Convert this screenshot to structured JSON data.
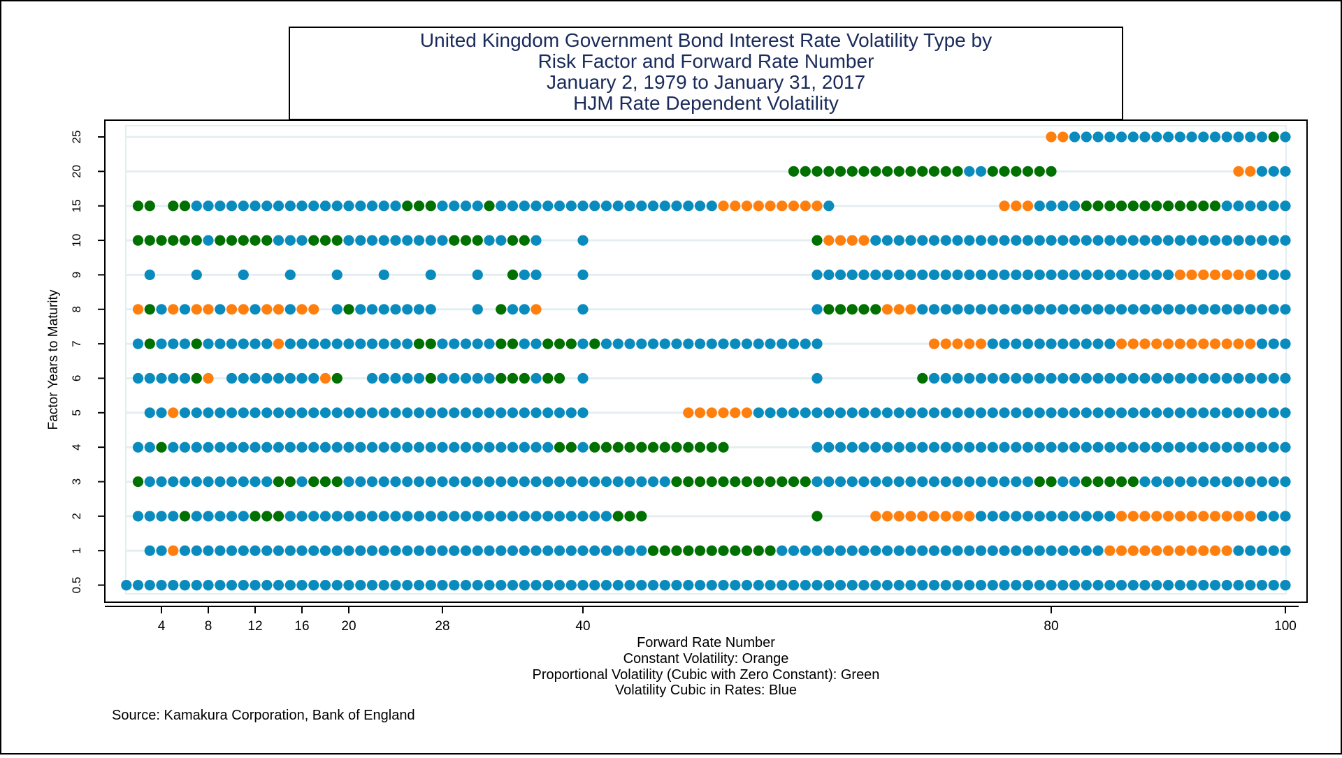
{
  "chart_data": {
    "type": "scatter",
    "title_lines": [
      "United Kingdom Government Bond Interest Rate Volatility Type by",
      "Risk Factor and Forward Rate Number",
      "January 2, 1979 to January 31, 2017",
      "HJM Rate Dependent Volatility"
    ],
    "xlabel": "Forward Rate Number",
    "ylabel": "Factor Years to Maturity",
    "x_ticks": [
      4,
      8,
      12,
      16,
      20,
      28,
      40,
      80,
      100
    ],
    "y_ticks": [
      "0.5",
      "1",
      "2",
      "3",
      "4",
      "5",
      "6",
      "7",
      "8",
      "9",
      "10",
      "15",
      "20",
      "25"
    ],
    "xlim": [
      0,
      100
    ],
    "legend_lines": [
      "Constant Volatility: Orange",
      "Proportional Volatility (Cubic with Zero Constant): Green",
      "Volatility Cubic in Rates: Blue"
    ],
    "source": "Source: Kamakura Corporation, Bank of England",
    "colors": {
      "orange": "#ff7f0e",
      "green": "#007000",
      "blue": "#0a8bbd",
      "grid": "#e4eef1",
      "title_text": "#1a2a5a"
    },
    "series_legend": {
      "o": "Constant Volatility",
      "g": "Proportional Volatility",
      "b": "Volatility Cubic in Rates"
    },
    "rows": [
      {
        "factor": "25",
        "segments": [
          [
            80,
            81,
            "o"
          ],
          [
            82,
            98,
            "b"
          ],
          [
            99,
            99,
            "g"
          ],
          [
            100,
            100,
            "b"
          ]
        ]
      },
      {
        "factor": "20",
        "segments": [
          [
            58,
            72,
            "g"
          ],
          [
            73,
            74,
            "b"
          ],
          [
            75,
            80,
            "g"
          ],
          [
            96,
            97,
            "o"
          ],
          [
            98,
            100,
            "b"
          ]
        ]
      },
      {
        "factor": "15",
        "segments": [
          [
            2,
            3,
            "g"
          ],
          [
            5,
            6,
            "g"
          ],
          [
            7,
            24,
            "b"
          ],
          [
            25,
            27,
            "g"
          ],
          [
            28,
            31,
            "b"
          ],
          [
            32,
            32,
            "g"
          ],
          [
            33,
            51,
            "b"
          ],
          [
            52,
            60,
            "o"
          ],
          [
            61,
            61,
            "b"
          ],
          [
            76,
            78,
            "o"
          ],
          [
            79,
            82,
            "b"
          ],
          [
            83,
            94,
            "g"
          ],
          [
            95,
            100,
            "b"
          ]
        ]
      },
      {
        "factor": "10",
        "segments": [
          [
            2,
            7,
            "g"
          ],
          [
            8,
            8,
            "b"
          ],
          [
            9,
            13,
            "g"
          ],
          [
            14,
            16,
            "b"
          ],
          [
            17,
            19,
            "g"
          ],
          [
            20,
            28,
            "b"
          ],
          [
            29,
            31,
            "g"
          ],
          [
            32,
            33,
            "b"
          ],
          [
            34,
            35,
            "g"
          ],
          [
            36,
            36,
            "b"
          ],
          [
            40,
            40,
            "b"
          ],
          [
            60,
            60,
            "g"
          ],
          [
            61,
            64,
            "o"
          ],
          [
            65,
            100,
            "b"
          ]
        ]
      },
      {
        "factor": "9",
        "segments": [
          [
            3,
            3,
            "b"
          ],
          [
            7,
            7,
            "b"
          ],
          [
            11,
            11,
            "b"
          ],
          [
            15,
            15,
            "b"
          ],
          [
            19,
            19,
            "b"
          ],
          [
            23,
            23,
            "b"
          ],
          [
            27,
            27,
            "b"
          ],
          [
            31,
            31,
            "b"
          ],
          [
            34,
            34,
            "g"
          ],
          [
            35,
            36,
            "b"
          ],
          [
            40,
            40,
            "b"
          ],
          [
            60,
            90,
            "b"
          ],
          [
            91,
            97,
            "o"
          ],
          [
            98,
            100,
            "b"
          ]
        ]
      },
      {
        "factor": "8",
        "segments": [
          [
            2,
            2,
            "o"
          ],
          [
            3,
            3,
            "g"
          ],
          [
            4,
            4,
            "b"
          ],
          [
            5,
            5,
            "o"
          ],
          [
            6,
            6,
            "b"
          ],
          [
            7,
            8,
            "o"
          ],
          [
            9,
            9,
            "b"
          ],
          [
            10,
            11,
            "o"
          ],
          [
            12,
            12,
            "b"
          ],
          [
            13,
            14,
            "o"
          ],
          [
            15,
            15,
            "b"
          ],
          [
            16,
            17,
            "o"
          ],
          [
            19,
            19,
            "b"
          ],
          [
            20,
            20,
            "g"
          ],
          [
            21,
            27,
            "b"
          ],
          [
            31,
            31,
            "b"
          ],
          [
            33,
            33,
            "g"
          ],
          [
            34,
            35,
            "b"
          ],
          [
            36,
            36,
            "o"
          ],
          [
            40,
            40,
            "b"
          ],
          [
            60,
            60,
            "b"
          ],
          [
            61,
            65,
            "g"
          ],
          [
            66,
            68,
            "o"
          ],
          [
            69,
            100,
            "b"
          ]
        ]
      },
      {
        "factor": "7",
        "segments": [
          [
            2,
            2,
            "b"
          ],
          [
            3,
            3,
            "g"
          ],
          [
            4,
            6,
            "b"
          ],
          [
            7,
            7,
            "g"
          ],
          [
            8,
            13,
            "b"
          ],
          [
            14,
            14,
            "o"
          ],
          [
            15,
            25,
            "b"
          ],
          [
            26,
            27,
            "g"
          ],
          [
            28,
            32,
            "b"
          ],
          [
            33,
            34,
            "g"
          ],
          [
            35,
            36,
            "b"
          ],
          [
            37,
            39,
            "g"
          ],
          [
            40,
            40,
            "b"
          ],
          [
            41,
            41,
            "g"
          ],
          [
            42,
            60,
            "b"
          ],
          [
            70,
            74,
            "o"
          ],
          [
            75,
            85,
            "b"
          ],
          [
            86,
            97,
            "o"
          ],
          [
            98,
            100,
            "b"
          ]
        ]
      },
      {
        "factor": "6",
        "segments": [
          [
            2,
            6,
            "b"
          ],
          [
            7,
            7,
            "g"
          ],
          [
            8,
            8,
            "o"
          ],
          [
            10,
            17,
            "b"
          ],
          [
            18,
            18,
            "o"
          ],
          [
            19,
            19,
            "g"
          ],
          [
            22,
            26,
            "b"
          ],
          [
            27,
            27,
            "g"
          ],
          [
            28,
            32,
            "b"
          ],
          [
            33,
            35,
            "g"
          ],
          [
            36,
            36,
            "b"
          ],
          [
            37,
            38,
            "g"
          ],
          [
            40,
            40,
            "b"
          ],
          [
            60,
            60,
            "b"
          ],
          [
            69,
            69,
            "g"
          ],
          [
            70,
            100,
            "b"
          ]
        ]
      },
      {
        "factor": "5",
        "segments": [
          [
            3,
            4,
            "b"
          ],
          [
            5,
            5,
            "o"
          ],
          [
            6,
            40,
            "b"
          ],
          [
            49,
            54,
            "o"
          ],
          [
            55,
            100,
            "b"
          ]
        ]
      },
      {
        "factor": "4",
        "segments": [
          [
            2,
            3,
            "b"
          ],
          [
            4,
            4,
            "g"
          ],
          [
            5,
            37,
            "b"
          ],
          [
            38,
            39,
            "g"
          ],
          [
            40,
            40,
            "b"
          ],
          [
            41,
            52,
            "g"
          ],
          [
            60,
            100,
            "b"
          ]
        ]
      },
      {
        "factor": "3",
        "segments": [
          [
            2,
            2,
            "g"
          ],
          [
            3,
            13,
            "b"
          ],
          [
            14,
            15,
            "g"
          ],
          [
            16,
            16,
            "b"
          ],
          [
            17,
            19,
            "g"
          ],
          [
            20,
            47,
            "b"
          ],
          [
            48,
            59,
            "g"
          ],
          [
            60,
            78,
            "b"
          ],
          [
            79,
            80,
            "g"
          ],
          [
            81,
            82,
            "b"
          ],
          [
            83,
            87,
            "g"
          ],
          [
            88,
            100,
            "b"
          ]
        ]
      },
      {
        "factor": "2",
        "segments": [
          [
            2,
            5,
            "b"
          ],
          [
            6,
            6,
            "g"
          ],
          [
            7,
            11,
            "b"
          ],
          [
            12,
            14,
            "g"
          ],
          [
            15,
            42,
            "b"
          ],
          [
            43,
            45,
            "g"
          ],
          [
            60,
            60,
            "g"
          ],
          [
            65,
            73,
            "o"
          ],
          [
            74,
            85,
            "b"
          ],
          [
            86,
            97,
            "o"
          ],
          [
            98,
            100,
            "b"
          ]
        ]
      },
      {
        "factor": "1",
        "segments": [
          [
            3,
            4,
            "b"
          ],
          [
            5,
            5,
            "o"
          ],
          [
            6,
            45,
            "b"
          ],
          [
            46,
            56,
            "g"
          ],
          [
            57,
            84,
            "b"
          ],
          [
            85,
            95,
            "o"
          ],
          [
            96,
            100,
            "b"
          ]
        ]
      },
      {
        "factor": "0.5",
        "segments": [
          [
            1,
            100,
            "b"
          ]
        ]
      }
    ]
  }
}
